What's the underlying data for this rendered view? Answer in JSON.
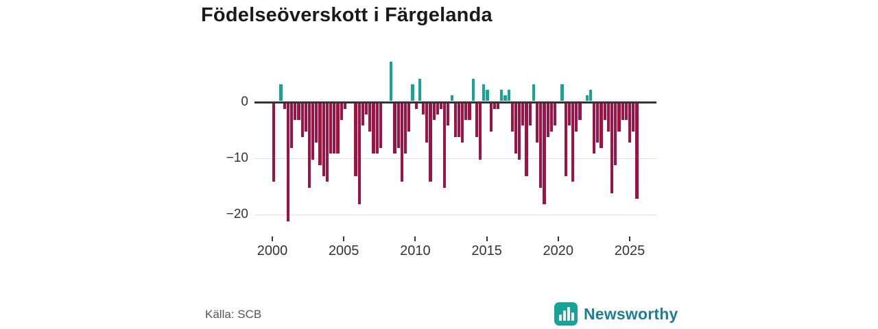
{
  "title": "Födelseöverskott i Färgelanda",
  "source": "Källa: SCB",
  "logo": {
    "text": "Newsworthy",
    "icon": "bar-chart-icon"
  },
  "colors": {
    "positive": "#17a398",
    "negative": "#a21144",
    "axis": "#333333",
    "grid": "#dddddd",
    "title_text": "#1a1a1a",
    "source_text": "#555555",
    "logo_bg": "#17a398",
    "logo_text": "#1b7e92"
  },
  "chart_data": {
    "type": "bar",
    "title": "Födelseöverskott i Färgelanda",
    "xlabel": "",
    "ylabel": "",
    "period": "quarterly",
    "start": "2000-Q1",
    "end": "2025-Q3",
    "ylim": [
      -22,
      8
    ],
    "grid": "horizontal",
    "legend": "none",
    "yticks": [
      {
        "label": "0",
        "value": 0
      },
      {
        "label": "−10",
        "value": -10
      },
      {
        "label": "−20",
        "value": -20
      }
    ],
    "xticks": [
      {
        "label": "2000",
        "year": 2000
      },
      {
        "label": "2005",
        "year": 2005
      },
      {
        "label": "2010",
        "year": 2010
      },
      {
        "label": "2015",
        "year": 2015
      },
      {
        "label": "2020",
        "year": 2020
      },
      {
        "label": "2025",
        "year": 2025
      }
    ],
    "values": [
      -14,
      0,
      3,
      -1,
      -21,
      -8,
      -3,
      -3,
      -6,
      -5,
      -15,
      -10,
      -7,
      -11,
      -13,
      -14,
      -9,
      -9,
      -9,
      -3,
      -1,
      0,
      0,
      -13,
      -18,
      -4,
      -2,
      -5,
      -9,
      -9,
      -8,
      0,
      0,
      7,
      -9,
      -8,
      -14,
      -9,
      -5,
      3,
      -1,
      4,
      -2,
      -7,
      -14,
      -3,
      -2,
      -1,
      -15,
      -4,
      1,
      -6,
      -6,
      -7,
      -3,
      -3,
      4,
      -6,
      -10,
      3,
      2,
      -5,
      -1,
      -1,
      2,
      1,
      2,
      -5,
      -9,
      -10,
      -4,
      -13,
      -4,
      3,
      -7,
      -15,
      -18,
      -6,
      -5,
      -4,
      0,
      3,
      -13,
      -4,
      -14,
      -5,
      -3,
      0,
      1,
      2,
      -9,
      -7,
      -8,
      -3,
      -5,
      -16,
      -11,
      -5,
      -3,
      -3,
      -7,
      -5,
      -17
    ]
  }
}
